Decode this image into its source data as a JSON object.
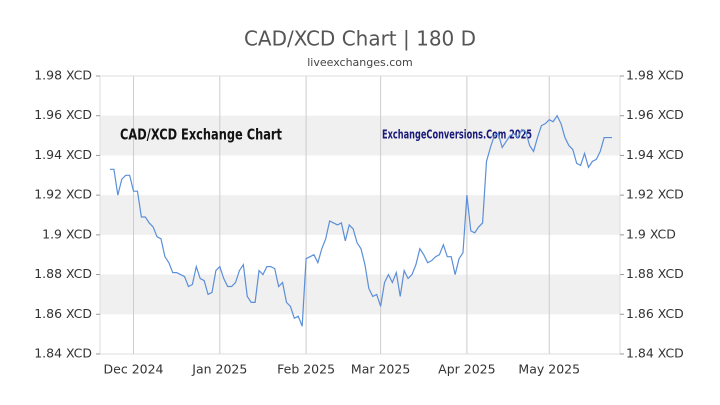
{
  "chart_data": {
    "type": "line",
    "title": "CAD/XCD Chart | 180 D",
    "subtitle": "liveexchanges.com",
    "annotations": [
      "CAD/XCD Exchange Chart",
      "ExchangeConversions.Com 2025"
    ],
    "categories": [
      null,
      null,
      null,
      null,
      null,
      null,
      "Dec 2024",
      null,
      null,
      null,
      null,
      null,
      null,
      null,
      null,
      null,
      null,
      null,
      null,
      null,
      null,
      null,
      null,
      null,
      null,
      null,
      null,
      null,
      "Jan 2025",
      null,
      null,
      null,
      null,
      null,
      null,
      null,
      null,
      null,
      null,
      null,
      null,
      null,
      null,
      null,
      null,
      null,
      null,
      null,
      null,
      null,
      "Feb 2025",
      null,
      null,
      null,
      null,
      null,
      null,
      null,
      null,
      null,
      null,
      null,
      null,
      null,
      null,
      null,
      null,
      null,
      null,
      "Mar 2025",
      null,
      null,
      null,
      null,
      null,
      null,
      null,
      null,
      null,
      null,
      null,
      null,
      null,
      null,
      null,
      null,
      null,
      null,
      null,
      null,
      null,
      "Apr 2025",
      null,
      null,
      null,
      null,
      null,
      null,
      null,
      null,
      null,
      null,
      null,
      null,
      null,
      null,
      null,
      null,
      null,
      null,
      null,
      null,
      "May 2025",
      null,
      null,
      null,
      null,
      null,
      null,
      null,
      null,
      null,
      null,
      null,
      null,
      null,
      null,
      null,
      null
    ],
    "series": [
      {
        "color": "#5b8fd8",
        "values": [
          1.933,
          1.933,
          1.92,
          1.928,
          1.93,
          1.93,
          1.922,
          1.922,
          1.909,
          1.909,
          1.906,
          1.904,
          1.899,
          1.898,
          1.889,
          1.886,
          1.881,
          1.881,
          1.88,
          1.879,
          1.874,
          1.875,
          1.884,
          1.878,
          1.877,
          1.87,
          1.871,
          1.882,
          1.884,
          1.878,
          1.874,
          1.874,
          1.876,
          1.882,
          1.885,
          1.869,
          1.866,
          1.866,
          1.882,
          1.88,
          1.884,
          1.884,
          1.883,
          1.874,
          1.876,
          1.866,
          1.864,
          1.858,
          1.859,
          1.854,
          1.888,
          1.889,
          1.89,
          1.886,
          1.893,
          1.898,
          1.907,
          1.906,
          1.905,
          1.906,
          1.897,
          1.905,
          1.903,
          1.896,
          1.893,
          1.885,
          1.873,
          1.869,
          1.87,
          1.864,
          1.876,
          1.88,
          1.876,
          1.881,
          1.869,
          1.882,
          1.878,
          1.88,
          1.885,
          1.893,
          1.89,
          1.886,
          1.887,
          1.889,
          1.89,
          1.895,
          1.889,
          1.889,
          1.88,
          1.888,
          1.891,
          1.92,
          1.902,
          1.901,
          1.904,
          1.906,
          1.937,
          1.944,
          1.95,
          1.951,
          1.944,
          1.947,
          1.95,
          1.951,
          1.949,
          1.953,
          1.952,
          1.945,
          1.942,
          1.949,
          1.955,
          1.956,
          1.958,
          1.957,
          1.96,
          1.956,
          1.949,
          1.945,
          1.943,
          1.936,
          1.935,
          1.941,
          1.934,
          1.937,
          1.938,
          1.942,
          1.949,
          1.949,
          1.949
        ]
      }
    ],
    "ylim": [
      1.84,
      1.98
    ],
    "yticks": [
      {
        "value": 1.98,
        "label": "1.98 XCD"
      },
      {
        "value": 1.96,
        "label": "1.96 XCD"
      },
      {
        "value": 1.94,
        "label": "1.94 XCD"
      },
      {
        "value": 1.92,
        "label": "1.92 XCD"
      },
      {
        "value": 1.9,
        "label": "1.9 XCD"
      },
      {
        "value": 1.88,
        "label": "1.88 XCD"
      },
      {
        "value": 1.86,
        "label": "1.86 XCD"
      },
      {
        "value": 1.84,
        "label": "1.84 XCD"
      }
    ],
    "y2lim": [
      1.84,
      1.98
    ],
    "y2ticks": [
      {
        "value": 1.98,
        "label": "1.98 XCD"
      },
      {
        "value": 1.96,
        "label": "1.96 XCD"
      },
      {
        "value": 1.94,
        "label": "1.94 XCD"
      },
      {
        "value": 1.92,
        "label": "1.92 XCD"
      },
      {
        "value": 1.9,
        "label": "1.9 XCD"
      },
      {
        "value": 1.88,
        "label": "1.88 XCD"
      },
      {
        "value": 1.86,
        "label": "1.86 XCD"
      },
      {
        "value": 1.84,
        "label": "1.84 XCD"
      }
    ],
    "grid": true,
    "bands": true
  }
}
